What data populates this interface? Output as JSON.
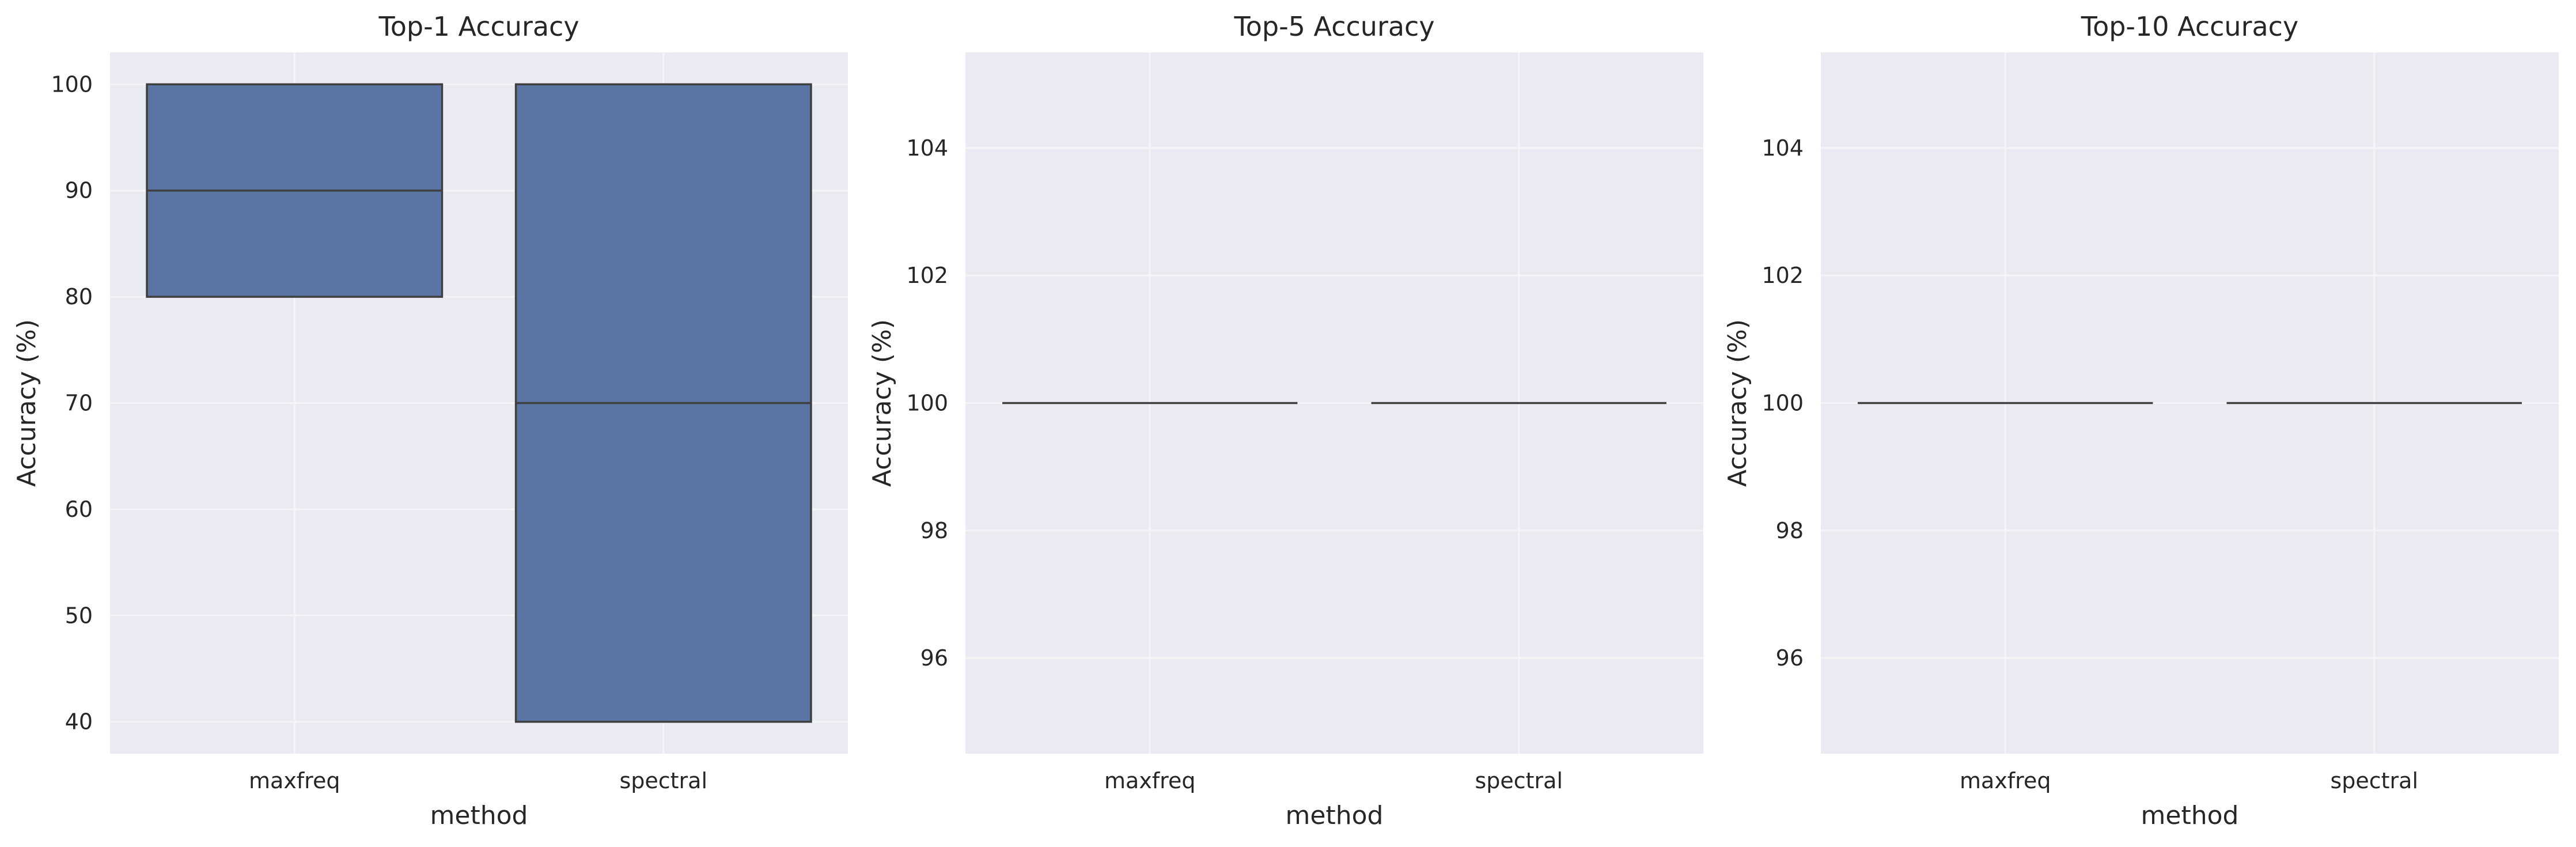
{
  "chart_data": [
    {
      "type": "box",
      "title": "Top-1 Accuracy",
      "xlabel": "method",
      "ylabel": "Accuracy (%)",
      "categories": [
        "maxfreq",
        "spectral"
      ],
      "boxes": [
        {
          "category": "maxfreq",
          "min": 80,
          "q1": 80,
          "median": 90,
          "q3": 100,
          "max": 100
        },
        {
          "category": "spectral",
          "min": 40,
          "q1": 40,
          "median": 70,
          "q3": 100,
          "max": 100
        }
      ],
      "ylim": [
        37,
        103
      ],
      "yticks": [
        40,
        50,
        60,
        70,
        80,
        90,
        100
      ],
      "grid": true
    },
    {
      "type": "box",
      "title": "Top-5 Accuracy",
      "xlabel": "method",
      "ylabel": "Accuracy (%)",
      "categories": [
        "maxfreq",
        "spectral"
      ],
      "boxes": [
        {
          "category": "maxfreq",
          "min": 100,
          "q1": 100,
          "median": 100,
          "q3": 100,
          "max": 100
        },
        {
          "category": "spectral",
          "min": 100,
          "q1": 100,
          "median": 100,
          "q3": 100,
          "max": 100
        }
      ],
      "ylim": [
        94.5,
        105.5
      ],
      "yticks": [
        96,
        98,
        100,
        102,
        104
      ],
      "grid": true
    },
    {
      "type": "box",
      "title": "Top-10 Accuracy",
      "xlabel": "method",
      "ylabel": "Accuracy (%)",
      "categories": [
        "maxfreq",
        "spectral"
      ],
      "boxes": [
        {
          "category": "maxfreq",
          "min": 100,
          "q1": 100,
          "median": 100,
          "q3": 100,
          "max": 100
        },
        {
          "category": "spectral",
          "min": 100,
          "q1": 100,
          "median": 100,
          "q3": 100,
          "max": 100
        }
      ],
      "ylim": [
        94.5,
        105.5
      ],
      "yticks": [
        96,
        98,
        100,
        102,
        104
      ],
      "grid": true
    }
  ],
  "colors": {
    "box_fill": "#5975a4",
    "box_edge": "#3f3f3f",
    "plot_bg": "#eaeaf2",
    "grid": "#f5f5f8"
  }
}
